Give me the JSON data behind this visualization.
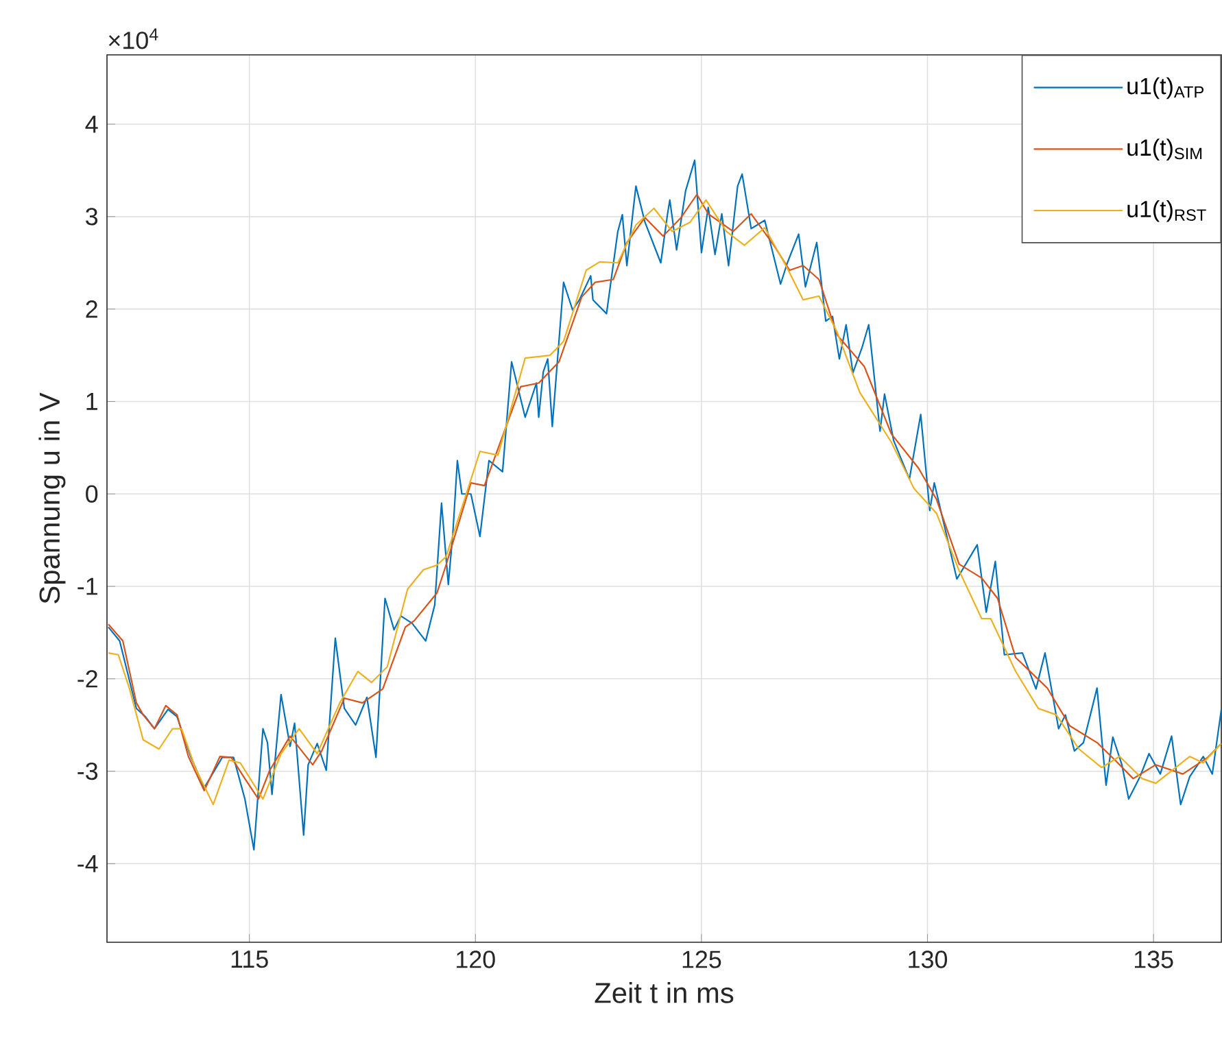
{
  "chart_data": {
    "type": "line",
    "xlabel": "Zeit t in ms",
    "ylabel": "Spannung u in V",
    "annotations": [
      "×10$^{4}$"
    ],
    "xlim": [
      111.85,
      136.5
    ],
    "ylim": [
      -4.85,
      4.75
    ],
    "xticks": [
      115,
      120,
      125,
      130,
      135
    ],
    "yticks": [
      -4,
      -3,
      -2,
      -1,
      0,
      1,
      2,
      3,
      4
    ],
    "grid": true,
    "legend": "top right",
    "marker": "none",
    "line_style": "solid",
    "series": [
      {
        "name": "u1(t)$_{ATP}$",
        "color": "#0072bd",
        "x": [
          111.88,
          112.13,
          112.5,
          112.7,
          112.9,
          113.2,
          113.4,
          113.7,
          114.0,
          114.4,
          114.65,
          114.9,
          115.1,
          115.3,
          115.4,
          115.5,
          115.7,
          115.9,
          116.0,
          116.2,
          116.3,
          116.5,
          116.7,
          116.9,
          117.1,
          117.35,
          117.6,
          117.8,
          118.0,
          118.2,
          118.35,
          118.6,
          118.9,
          119.1,
          119.25,
          119.4,
          119.5,
          119.6,
          119.7,
          119.9,
          120.1,
          120.3,
          120.6,
          120.8,
          121.1,
          121.35,
          121.4,
          121.5,
          121.6,
          121.7,
          121.95,
          122.15,
          122.3,
          122.55,
          122.6,
          122.9,
          123.15,
          123.25,
          123.35,
          123.55,
          123.75,
          124.1,
          124.25,
          124.3,
          124.45,
          124.65,
          124.85,
          125.0,
          125.15,
          125.3,
          125.45,
          125.6,
          125.8,
          125.9,
          126.1,
          126.4,
          126.75,
          126.9,
          127.15,
          127.3,
          127.55,
          127.75,
          127.9,
          128.05,
          128.2,
          128.35,
          128.55,
          128.7,
          128.95,
          129.05,
          129.25,
          129.6,
          129.85,
          130.05,
          130.15,
          130.65,
          131.1,
          131.3,
          131.5,
          131.7,
          132.1,
          132.4,
          132.6,
          132.9,
          133.05,
          133.25,
          133.45,
          133.75,
          133.95,
          134.1,
          134.3,
          134.45,
          134.7,
          134.9,
          135.15,
          135.4,
          135.6,
          135.8,
          136.1,
          136.3,
          136.5
        ],
        "values": [
          -1.44,
          -1.59,
          -2.32,
          -2.41,
          -2.54,
          -2.33,
          -2.41,
          -2.84,
          -3.18,
          -2.85,
          -2.85,
          -3.3,
          -3.85,
          -2.54,
          -2.69,
          -3.25,
          -2.17,
          -2.73,
          -2.48,
          -3.69,
          -2.93,
          -2.7,
          -2.99,
          -1.56,
          -2.32,
          -2.5,
          -2.2,
          -2.85,
          -1.13,
          -1.47,
          -1.32,
          -1.4,
          -1.59,
          -1.2,
          -0.1,
          -0.98,
          -0.43,
          0.36,
          0,
          0,
          -0.46,
          0.36,
          0.24,
          1.43,
          0.83,
          1.2,
          0.83,
          1.32,
          1.46,
          0.73,
          2.29,
          1.99,
          2.1,
          2.36,
          2.1,
          1.95,
          2.84,
          3.02,
          2.47,
          3.33,
          2.94,
          2.5,
          3.03,
          3.18,
          2.64,
          3.28,
          3.61,
          2.61,
          3.1,
          2.59,
          3.03,
          2.47,
          3.33,
          3.46,
          2.87,
          2.96,
          2.27,
          2.5,
          2.81,
          2.24,
          2.72,
          1.87,
          1.92,
          1.46,
          1.83,
          1.31,
          1.58,
          1.83,
          0.68,
          1.08,
          0.58,
          0.16,
          0.86,
          -0.18,
          0.12,
          -0.92,
          -0.55,
          -1.28,
          -0.73,
          -1.74,
          -1.72,
          -2.11,
          -1.72,
          -2.54,
          -2.39,
          -2.78,
          -2.69,
          -2.1,
          -3.15,
          -2.63,
          -2.93,
          -3.3,
          -3.06,
          -2.81,
          -3.03,
          -2.62,
          -3.36,
          -3.06,
          -2.84,
          -3.03,
          -2.33
        ]
      },
      {
        "name": "u1(t)$_{SIM}$",
        "color": "#d95319",
        "x": [
          111.88,
          112.2,
          112.5,
          112.65,
          112.9,
          113.15,
          113.4,
          113.65,
          114.0,
          114.35,
          114.6,
          114.9,
          115.2,
          115.45,
          115.9,
          116.4,
          116.6,
          117.1,
          117.5,
          117.95,
          118.45,
          118.65,
          119.15,
          119.35,
          119.9,
          120.2,
          121.0,
          121.4,
          121.85,
          122.35,
          122.65,
          123.05,
          123.35,
          123.75,
          124.15,
          124.55,
          124.9,
          125.15,
          125.7,
          126.1,
          126.6,
          126.95,
          127.25,
          127.6,
          128.0,
          128.6,
          129.2,
          129.8,
          130.2,
          130.7,
          131.2,
          131.55,
          131.95,
          132.65,
          133.15,
          133.75,
          134.15,
          134.55,
          135.05,
          135.65,
          136.2,
          136.5
        ],
        "values": [
          -1.41,
          -1.59,
          -2.26,
          -2.39,
          -2.54,
          -2.29,
          -2.39,
          -2.84,
          -3.21,
          -2.84,
          -2.85,
          -3.08,
          -3.3,
          -2.99,
          -2.62,
          -2.93,
          -2.78,
          -2.21,
          -2.26,
          -2.11,
          -1.44,
          -1.37,
          -1.07,
          -0.77,
          0.12,
          0.09,
          1.16,
          1.2,
          1.43,
          2.13,
          2.29,
          2.32,
          2.72,
          2.99,
          2.79,
          2.99,
          3.24,
          3.03,
          2.84,
          3.03,
          2.69,
          2.42,
          2.47,
          2.32,
          1.72,
          1.38,
          0.65,
          0.28,
          -0.06,
          -0.76,
          -0.91,
          -1.13,
          -1.77,
          -2.1,
          -2.51,
          -2.69,
          -2.88,
          -3.08,
          -2.93,
          -3.03,
          -2.85,
          -2.7
        ]
      },
      {
        "name": "u1(t)$_{RST}$",
        "color": "#edb120",
        "x": [
          111.88,
          112.1,
          112.35,
          112.65,
          113.0,
          113.3,
          113.5,
          113.8,
          114.2,
          114.55,
          114.8,
          115.3,
          115.7,
          116.1,
          116.5,
          117.0,
          117.4,
          117.7,
          118.05,
          118.5,
          118.85,
          119.15,
          119.35,
          120.1,
          120.5,
          121.1,
          121.65,
          121.95,
          122.45,
          122.75,
          123.15,
          123.55,
          123.95,
          124.35,
          124.75,
          125.1,
          125.55,
          125.95,
          126.4,
          126.9,
          127.25,
          127.6,
          128.0,
          128.5,
          129.2,
          129.7,
          130.2,
          130.7,
          131.2,
          131.4,
          131.95,
          132.45,
          132.85,
          133.35,
          133.85,
          134.25,
          134.75,
          135.05,
          135.8,
          136.1,
          136.5
        ],
        "values": [
          -1.72,
          -1.74,
          -2.11,
          -2.66,
          -2.76,
          -2.54,
          -2.54,
          -2.96,
          -3.36,
          -2.88,
          -2.91,
          -3.3,
          -2.81,
          -2.54,
          -2.81,
          -2.26,
          -1.92,
          -2.04,
          -1.87,
          -1.03,
          -0.82,
          -0.77,
          -0.68,
          0.46,
          0.42,
          1.47,
          1.5,
          1.65,
          2.42,
          2.51,
          2.5,
          2.91,
          3.09,
          2.84,
          2.94,
          3.18,
          2.84,
          2.69,
          2.88,
          2.44,
          2.1,
          2.14,
          1.75,
          1.1,
          0.56,
          0.06,
          -0.21,
          -0.83,
          -1.35,
          -1.35,
          -1.92,
          -2.32,
          -2.39,
          -2.76,
          -2.96,
          -2.84,
          -3.08,
          -3.13,
          -2.84,
          -2.91,
          -2.7
        ]
      }
    ]
  }
}
